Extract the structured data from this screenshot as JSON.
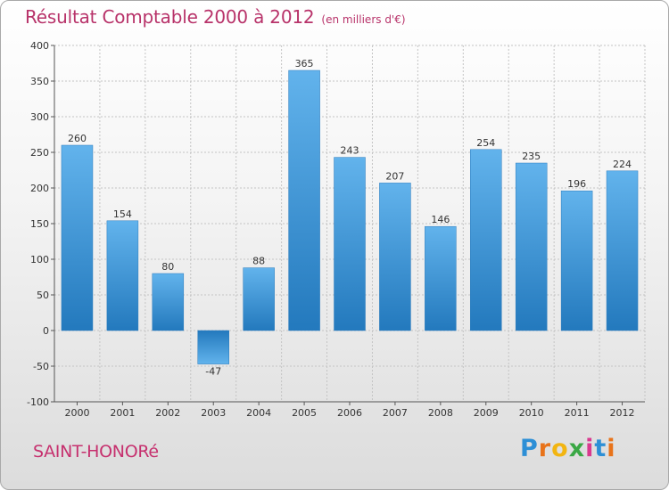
{
  "chart_data": {
    "type": "bar",
    "title": "Résultat Comptable 2000 à 2012",
    "unit_note": "(en milliers d'€)",
    "categories": [
      "2000",
      "2001",
      "2002",
      "2003",
      "2004",
      "2005",
      "2006",
      "2007",
      "2008",
      "2009",
      "2010",
      "2011",
      "2012"
    ],
    "values": [
      260,
      154,
      80,
      -47,
      88,
      365,
      243,
      207,
      146,
      254,
      235,
      196,
      224
    ],
    "ylim": [
      -100,
      400
    ],
    "yticks": [
      -100,
      -50,
      0,
      50,
      100,
      150,
      200,
      250,
      300,
      350,
      400
    ],
    "xlabel": "",
    "ylabel": "",
    "grid": true
  },
  "commune": "SAINT-HONORé",
  "logo": {
    "text": "Proxiti",
    "letters": [
      "P",
      "r",
      "o",
      "x",
      "i",
      "t",
      "i"
    ],
    "colors": [
      "#2d8fd6",
      "#e8731a",
      "#f2b511",
      "#3aa845",
      "#d93a8f",
      "#2d8fd6",
      "#e8731a"
    ]
  },
  "colors": {
    "title": "#b8336a",
    "bar_light": "#62b3ec",
    "bar_dark": "#2379bd",
    "grid": "#bdbdbd"
  }
}
